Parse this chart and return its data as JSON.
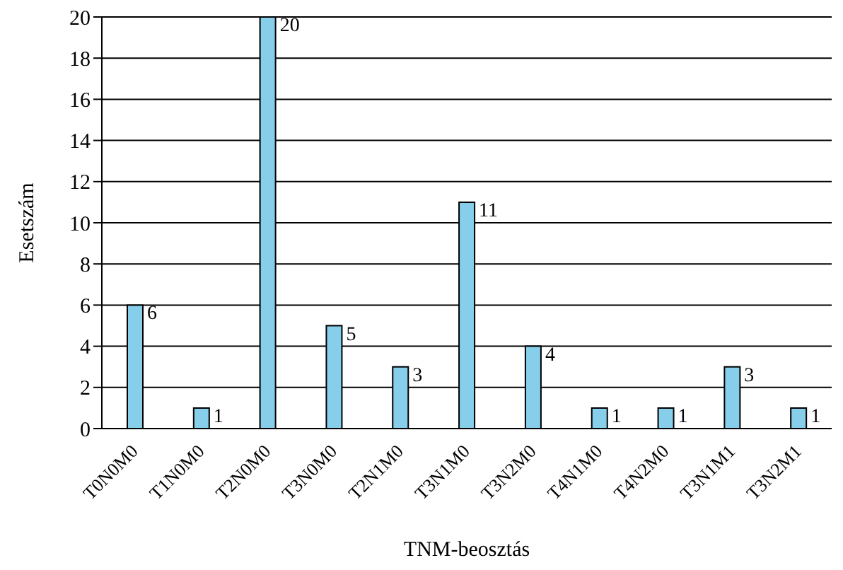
{
  "chart_data": {
    "type": "bar",
    "xlabel": "TNM-beosztás",
    "ylabel": "Esetszám",
    "categories": [
      "T0N0M0",
      "T1N0M0",
      "T2N0M0",
      "T3N0M0",
      "T2N1M0",
      "T3N1M0",
      "T3N2M0",
      "T4N1M0",
      "T4N2M0",
      "T3N1M1",
      "T3N2M1"
    ],
    "values": [
      6,
      1,
      20,
      5,
      3,
      11,
      4,
      1,
      1,
      3,
      1
    ],
    "color": "#87ceeb",
    "ylim": [
      0,
      20
    ],
    "yticks": [
      0,
      2,
      4,
      6,
      8,
      10,
      12,
      14,
      16,
      18,
      20
    ],
    "grid": "y",
    "data_labels": true
  }
}
